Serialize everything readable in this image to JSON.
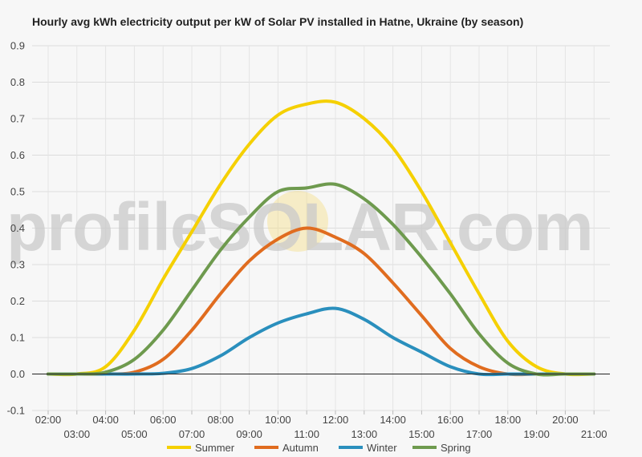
{
  "title": "Hourly avg kWh electricity output per kW of Solar PV installed in Hatne, Ukraine (by season)",
  "watermark": "profileSOLAR.com",
  "chart_data": {
    "type": "line",
    "title": "Hourly avg kWh electricity output per kW of Solar PV installed in Hatne, Ukraine (by season)",
    "xlabel": "",
    "ylabel": "",
    "ylim": [
      -0.1,
      0.9
    ],
    "yticks": [
      "-0.1",
      "0.0",
      "0.1",
      "0.2",
      "0.3",
      "0.4",
      "0.5",
      "0.6",
      "0.7",
      "0.8",
      "0.9"
    ],
    "x": [
      "02:00",
      "03:00",
      "04:00",
      "05:00",
      "06:00",
      "07:00",
      "08:00",
      "09:00",
      "10:00",
      "11:00",
      "12:00",
      "13:00",
      "14:00",
      "15:00",
      "16:00",
      "17:00",
      "18:00",
      "19:00",
      "20:00",
      "21:00"
    ],
    "grid": true,
    "legend_position": "bottom",
    "series": [
      {
        "name": "Summer",
        "color": "#f5d000",
        "values": [
          0,
          0,
          0.02,
          0.12,
          0.26,
          0.39,
          0.52,
          0.63,
          0.71,
          0.74,
          0.745,
          0.7,
          0.62,
          0.5,
          0.36,
          0.22,
          0.09,
          0.02,
          0,
          0
        ]
      },
      {
        "name": "Autumn",
        "color": "#e06c1f",
        "values": [
          0,
          0,
          0,
          0.005,
          0.04,
          0.12,
          0.22,
          0.31,
          0.37,
          0.4,
          0.375,
          0.33,
          0.25,
          0.16,
          0.07,
          0.02,
          0,
          0,
          0,
          0
        ]
      },
      {
        "name": "Winter",
        "color": "#2a8fbd",
        "values": [
          0,
          0,
          0,
          0,
          0.002,
          0.015,
          0.05,
          0.1,
          0.14,
          0.165,
          0.18,
          0.15,
          0.1,
          0.06,
          0.02,
          0,
          0,
          0,
          0,
          0
        ]
      },
      {
        "name": "Spring",
        "color": "#6e9a4e",
        "values": [
          0,
          0,
          0.005,
          0.04,
          0.12,
          0.23,
          0.34,
          0.43,
          0.5,
          0.51,
          0.52,
          0.48,
          0.41,
          0.32,
          0.22,
          0.11,
          0.03,
          0,
          0,
          0
        ]
      }
    ]
  }
}
